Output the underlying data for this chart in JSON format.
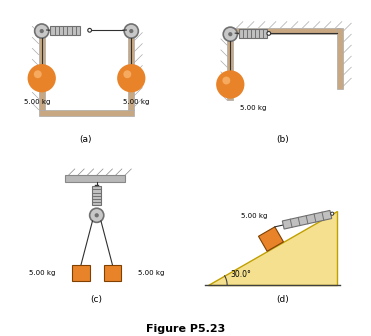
{
  "fig_title": "Figure P5.23",
  "background_color": "#ffffff",
  "ball_color": "#E8832A",
  "ball_highlight": "#F5AA60",
  "box_color": "#E8832A",
  "box_edge_color": "#804000",
  "spring_color": "#888888",
  "pulley_face_color": "#c8c8c8",
  "pulley_edge_color": "#707070",
  "wall_face_color": "#C8A882",
  "wall_edge_color": "#aaaaaa",
  "ceil_face_color": "#b8b8b8",
  "ceil_edge_color": "#888888",
  "rope_color": "#303030",
  "triangle_color": "#F5E090",
  "triangle_edge_color": "#c0a000",
  "ground_color": "#404040",
  "label_a": "(a)",
  "label_b": "(b)",
  "label_c": "(c)",
  "label_d": "(d)",
  "mass_label": "5.00 kg",
  "angle_label": "30.0°"
}
